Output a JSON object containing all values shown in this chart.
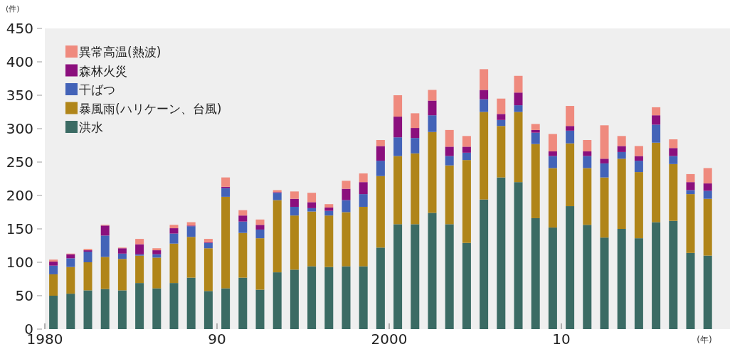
{
  "chart_data": {
    "type": "bar",
    "stacked": true,
    "ylabel": "(件)",
    "xlabel": "(年)",
    "legend": "top left",
    "grid": false,
    "categories": [
      "1980",
      null,
      null,
      null,
      null,
      null,
      null,
      null,
      null,
      null,
      "90",
      null,
      null,
      null,
      null,
      null,
      null,
      null,
      null,
      null,
      "2000",
      null,
      null,
      null,
      null,
      null,
      null,
      null,
      null,
      null,
      "10",
      null,
      null,
      null,
      null,
      null,
      null,
      null,
      null
    ],
    "ylim": [
      0,
      450
    ],
    "yticks": [
      0,
      50,
      100,
      150,
      200,
      250,
      300,
      350,
      400,
      450
    ],
    "series": [
      {
        "name": "洪水",
        "color": "#3b6b64",
        "values": [
          50,
          53,
          58,
          60,
          58,
          69,
          61,
          69,
          77,
          57,
          61,
          77,
          59,
          85,
          89,
          94,
          93,
          94,
          94,
          122,
          157,
          157,
          174,
          157,
          129,
          194,
          227,
          220,
          166,
          152,
          184,
          156,
          137,
          150,
          136,
          160,
          162,
          114,
          110
        ]
      },
      {
        "name": "暴風雨(ハリケーン、台風)",
        "color": "#b08519",
        "values": [
          32,
          40,
          42,
          48,
          47,
          41,
          46,
          59,
          61,
          64,
          137,
          67,
          77,
          108,
          81,
          82,
          77,
          81,
          89,
          107,
          102,
          106,
          121,
          88,
          124,
          131,
          77,
          105,
          111,
          89,
          94,
          85,
          90,
          105,
          99,
          119,
          85,
          88,
          85
        ]
      },
      {
        "name": "干ばつ",
        "color": "#4363b8",
        "values": [
          13,
          13,
          16,
          32,
          8,
          2,
          5,
          15,
          16,
          8,
          13,
          17,
          13,
          11,
          13,
          5,
          7,
          18,
          19,
          23,
          28,
          23,
          25,
          14,
          11,
          19,
          9,
          10,
          17,
          18,
          19,
          18,
          21,
          10,
          17,
          27,
          12,
          6,
          12
        ]
      },
      {
        "name": "森林火災",
        "color": "#8b0f7d",
        "values": [
          6,
          6,
          2,
          15,
          8,
          15,
          6,
          8,
          1,
          1,
          2,
          9,
          7,
          1,
          12,
          9,
          5,
          17,
          18,
          22,
          31,
          15,
          22,
          14,
          9,
          14,
          9,
          19,
          4,
          7,
          7,
          7,
          7,
          9,
          7,
          14,
          12,
          12,
          11
        ]
      },
      {
        "name": "異常高温(熱波)",
        "color": "#ef8a7e",
        "values": [
          3,
          1,
          2,
          1,
          1,
          8,
          3,
          5,
          5,
          5,
          14,
          8,
          8,
          3,
          11,
          14,
          5,
          12,
          13,
          9,
          32,
          22,
          16,
          25,
          16,
          31,
          23,
          25,
          9,
          26,
          30,
          17,
          50,
          15,
          15,
          12,
          13,
          12,
          23
        ]
      }
    ]
  }
}
